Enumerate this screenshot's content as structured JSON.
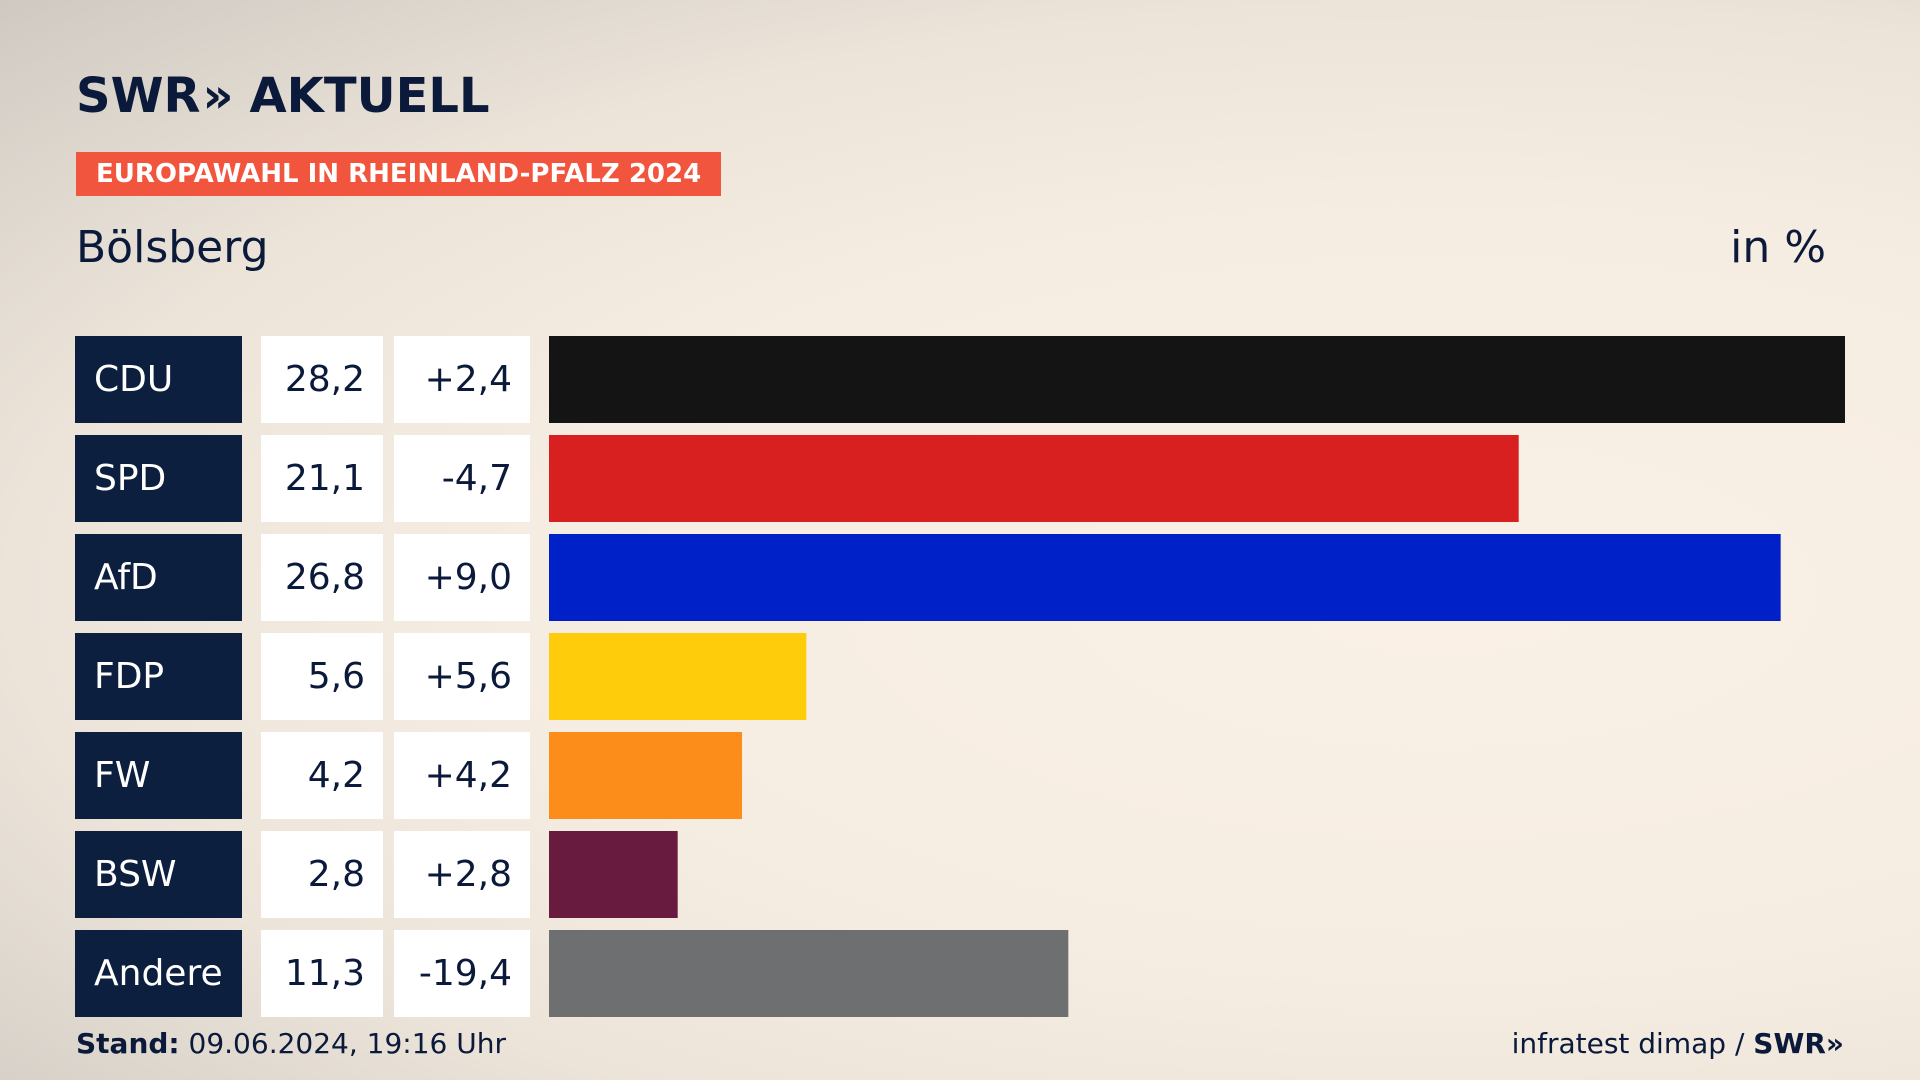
{
  "header": {
    "logo_left": "SWR",
    "logo_chevrons": "»",
    "logo_right": "AKTUELL",
    "badge": "EUROPAWAHL IN RHEINLAND-PFALZ 2024",
    "place": "Bölsberg",
    "unit": "in %"
  },
  "footer": {
    "stand_label": "Stand:",
    "stand_value": "09.06.2024, 19:16 Uhr",
    "source": "infratest dimap /",
    "swr_logo": "SWR»"
  },
  "colors": {
    "label_bg": "#0c1f3f",
    "value_bg": "#ffffff",
    "badge": "#f2553e"
  },
  "chart_data": {
    "type": "bar",
    "orientation": "horizontal",
    "categories": [
      "CDU",
      "SPD",
      "AfD",
      "FDP",
      "FW",
      "BSW",
      "Andere"
    ],
    "values": [
      28.2,
      21.1,
      26.8,
      5.6,
      4.2,
      2.8,
      11.3
    ],
    "value_labels": [
      "28,2",
      "21,1",
      "26,8",
      "5,6",
      "4,2",
      "2,8",
      "11,3"
    ],
    "changes": [
      2.4,
      -4.7,
      9.0,
      5.6,
      4.2,
      2.8,
      -19.4
    ],
    "change_labels": [
      "+2,4",
      "-4,7",
      "+9,0",
      "+5,6",
      "+4,2",
      "+2,8",
      "-19,4"
    ],
    "bar_colors": [
      "#141414",
      "#d7201f",
      "#0020c8",
      "#ffcc0c",
      "#fd8d1a",
      "#681a3f",
      "#6e6f71"
    ],
    "xlim": [
      0,
      28.2
    ]
  }
}
